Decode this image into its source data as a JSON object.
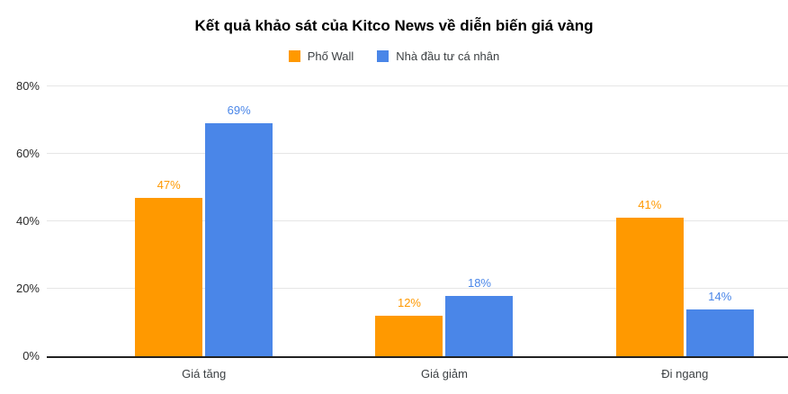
{
  "chart_data": {
    "type": "bar",
    "title": "Kết quả khảo sát của Kitco News về diễn biến giá vàng",
    "categories": [
      "Giá tăng",
      "Giá giảm",
      "Đi ngang"
    ],
    "series": [
      {
        "name": "Phố Wall",
        "color": "#FF9900",
        "values": [
          47,
          12,
          41
        ]
      },
      {
        "name": "Nhà đầu tư cá nhân",
        "color": "#4A86E8",
        "values": [
          69,
          18,
          14
        ]
      }
    ],
    "value_suffix": "%",
    "xlabel": "",
    "ylabel": "",
    "ylim": [
      0,
      80
    ],
    "yticks": [
      0,
      20,
      40,
      60,
      80
    ],
    "ytick_labels": [
      "0%",
      "20%",
      "40%",
      "60%",
      "80%"
    ],
    "grid": true,
    "legend_position": "top"
  },
  "colors": {
    "background": "#FFFFFF",
    "grid": "#E6E6E6",
    "axis_baseline": "#212121",
    "title_text": "#000000",
    "label_text": "#3C4043",
    "ytick_text": "#2B2B2B"
  }
}
